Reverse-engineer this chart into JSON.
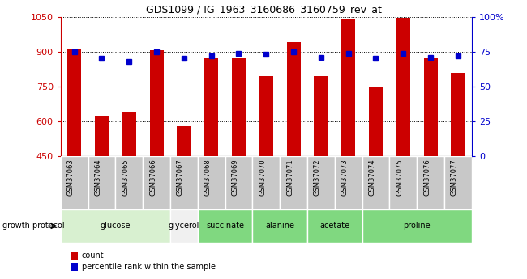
{
  "title": "GDS1099 / IG_1963_3160686_3160759_rev_at",
  "samples": [
    "GSM37063",
    "GSM37064",
    "GSM37065",
    "GSM37066",
    "GSM37067",
    "GSM37068",
    "GSM37069",
    "GSM37070",
    "GSM37071",
    "GSM37072",
    "GSM37073",
    "GSM37074",
    "GSM37075",
    "GSM37076",
    "GSM37077"
  ],
  "bar_values": [
    910,
    625,
    640,
    905,
    580,
    870,
    870,
    795,
    940,
    795,
    1040,
    750,
    1045,
    870,
    810
  ],
  "dot_values": [
    75,
    70,
    68,
    75,
    70,
    72,
    74,
    73,
    75,
    71,
    74,
    70,
    74,
    71,
    72
  ],
  "ylim_left": [
    450,
    1050
  ],
  "ylim_right": [
    0,
    100
  ],
  "yticks_left": [
    450,
    600,
    750,
    900,
    1050
  ],
  "yticks_right": [
    0,
    25,
    50,
    75,
    100
  ],
  "groups": [
    {
      "label": "glucose",
      "start": 0,
      "end": 4,
      "color": "#e0f5e0"
    },
    {
      "label": "glycerol",
      "start": 4,
      "end": 5,
      "color": "#e8e8e8"
    },
    {
      "label": "succinate",
      "start": 5,
      "end": 7,
      "color": "#90ee90"
    },
    {
      "label": "alanine",
      "start": 7,
      "end": 9,
      "color": "#90ee90"
    },
    {
      "label": "acetate",
      "start": 9,
      "end": 11,
      "color": "#90ee90"
    },
    {
      "label": "proline",
      "start": 11,
      "end": 15,
      "color": "#90ee90"
    }
  ],
  "bar_color": "#cc0000",
  "dot_color": "#0000cc",
  "bar_width": 0.5,
  "legend_items": [
    {
      "label": "count",
      "color": "#cc0000"
    },
    {
      "label": "percentile rank within the sample",
      "color": "#0000cc"
    }
  ],
  "growth_protocol_label": "growth protocol",
  "ylabel_left_color": "#cc0000",
  "ylabel_right_color": "#0000cc",
  "sample_bg_color": "#c8c8c8",
  "sample_cell_edge_color": "#ffffff"
}
